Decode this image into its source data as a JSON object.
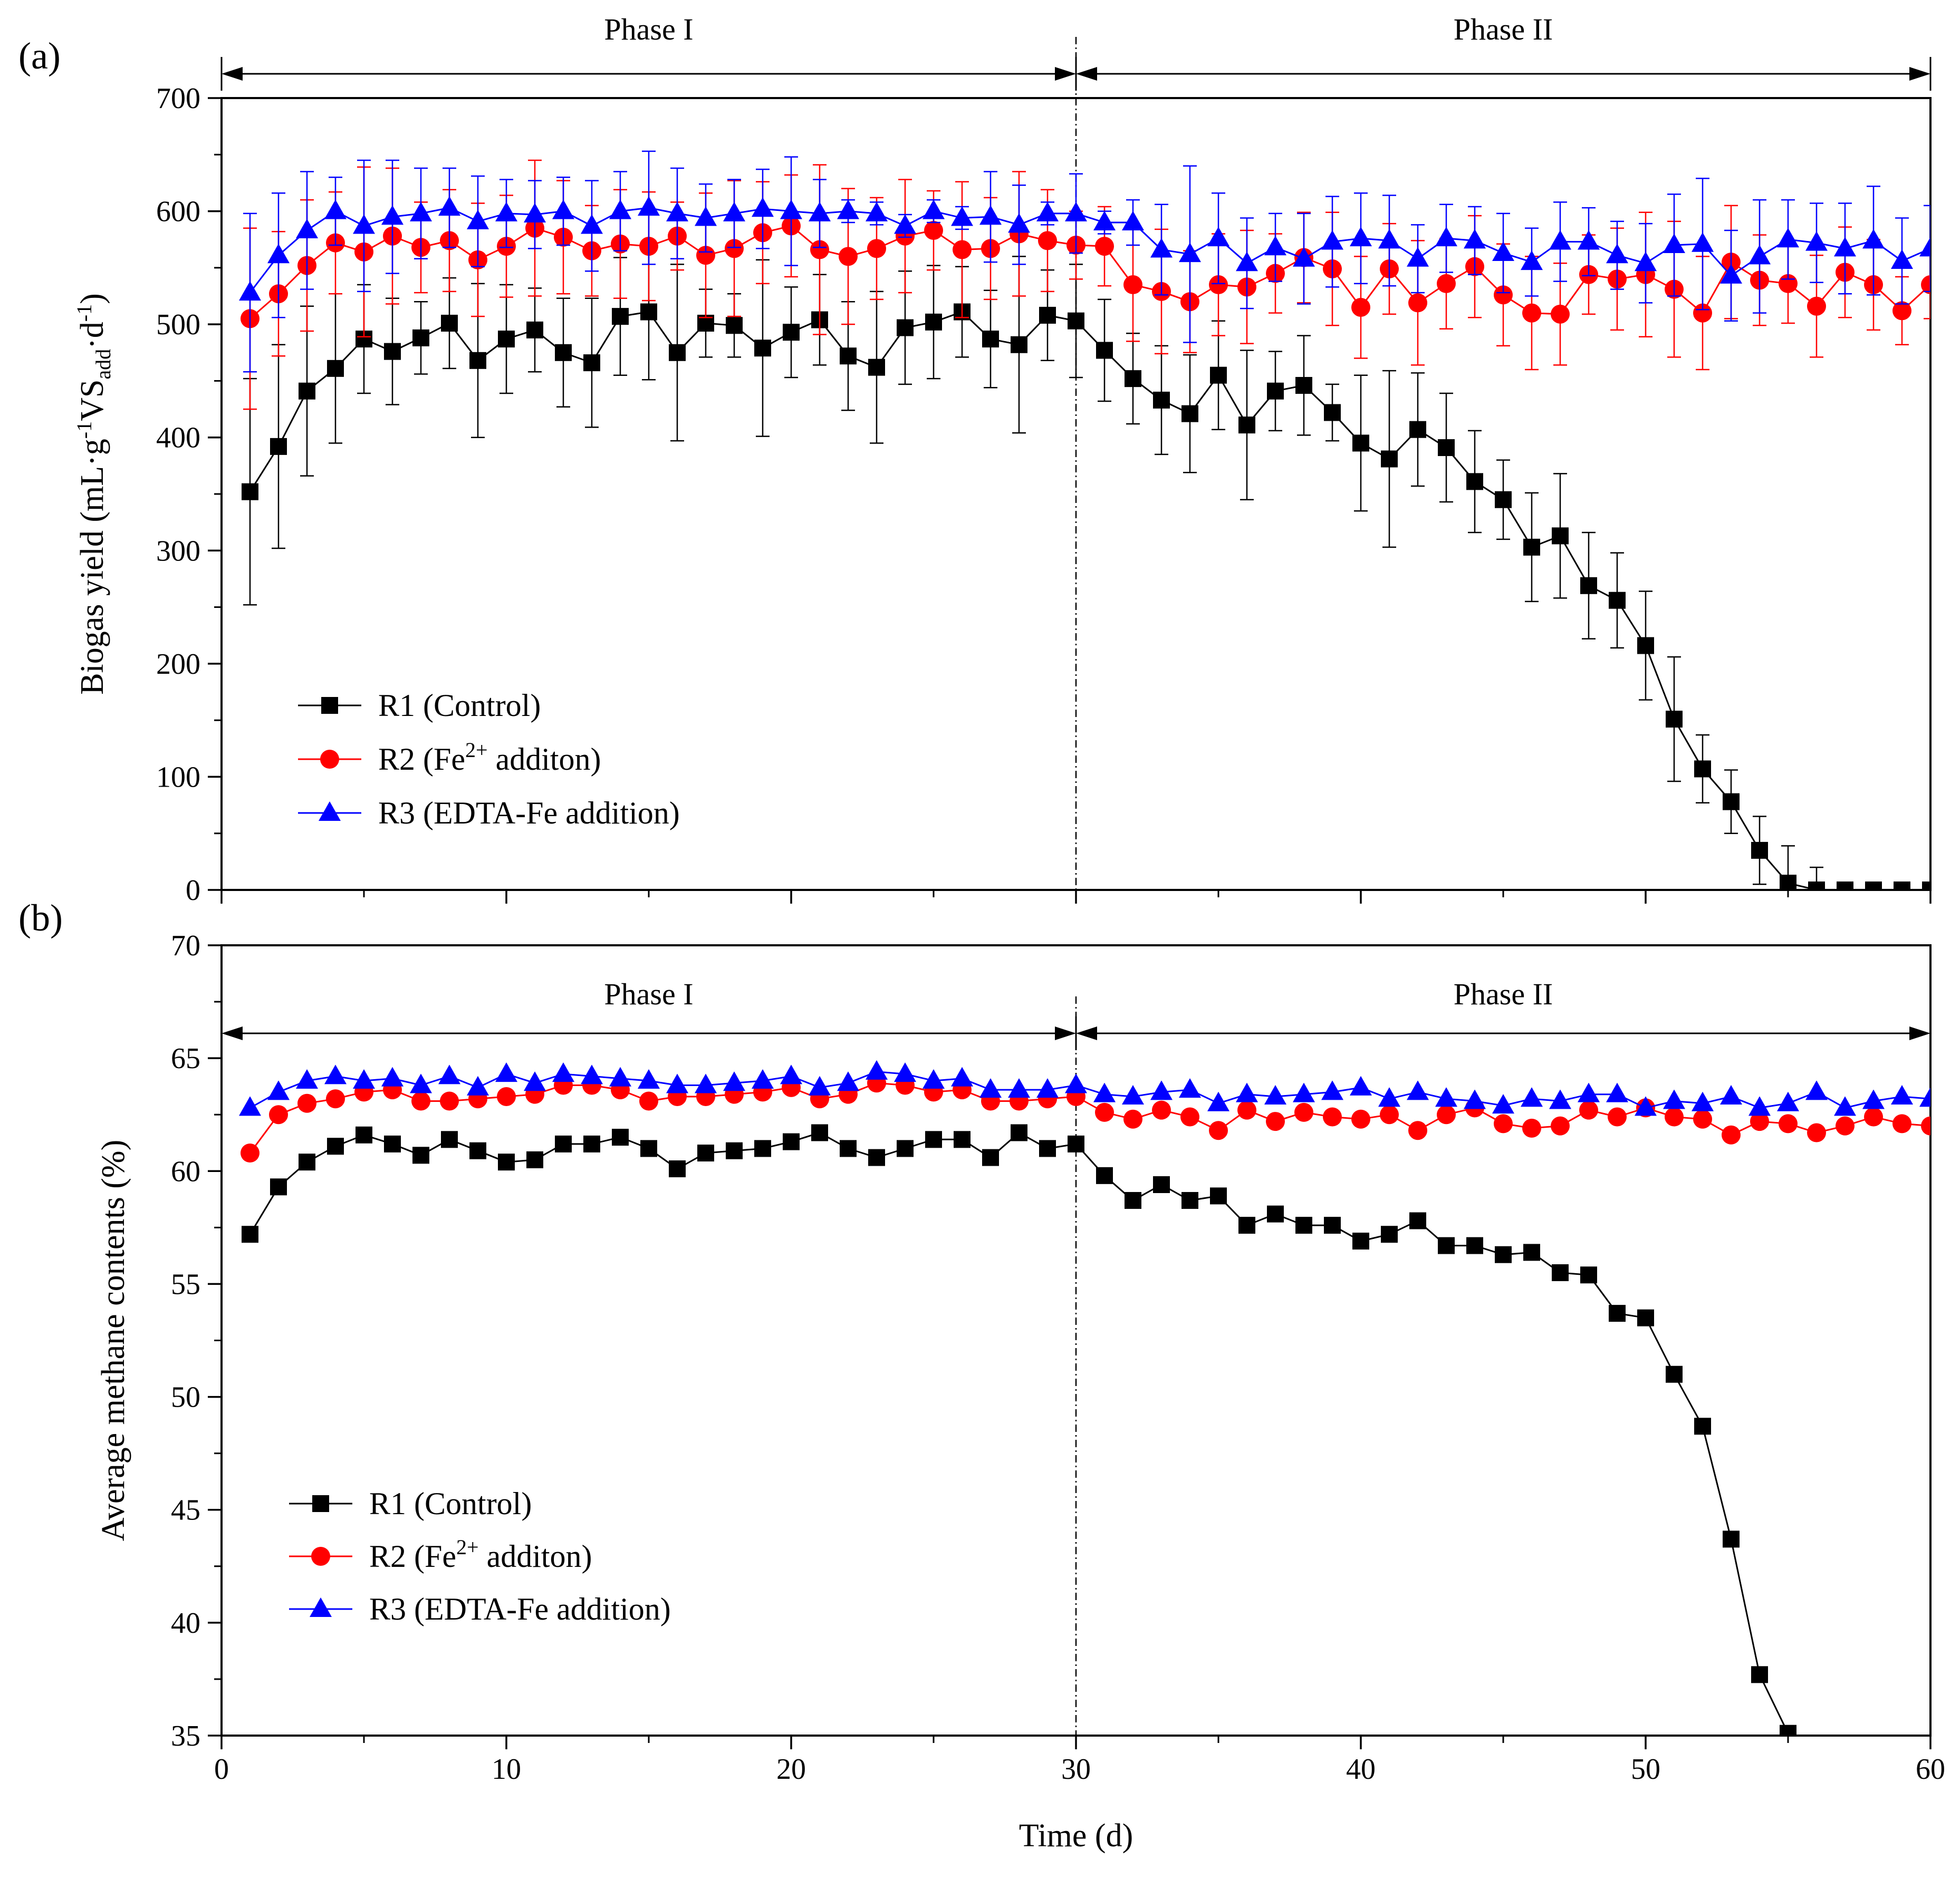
{
  "chart_data": [
    {
      "type": "line",
      "panel_label": "(a)",
      "xlabel": "",
      "ylabel": {
        "main": "Biogas yield (mL·g",
        "sup1": "-1",
        "mid": "VS",
        "sub": "add",
        "mid2": "·d",
        "sup2": "-1",
        "end": ")"
      },
      "xlim": [
        0,
        60
      ],
      "ylim": [
        0,
        700
      ],
      "xticks": [
        "0",
        "10",
        "20",
        "30",
        "40",
        "50",
        "60"
      ],
      "yticks": [
        "0",
        "100",
        "200",
        "300",
        "400",
        "500",
        "600",
        "700"
      ],
      "phases": [
        {
          "label": "Phase I",
          "from": 0,
          "to": 30
        },
        {
          "label": "Phase II",
          "from": 30,
          "to": 60
        }
      ],
      "divider_x": 30,
      "legend": {
        "position": "bottom-left",
        "entries": [
          {
            "series": "R1",
            "text": "R1 (Control)"
          },
          {
            "series": "R2",
            "text": "R2 (Fe",
            "sup": "2+",
            "after": " additon)"
          },
          {
            "series": "R3",
            "text": "R3 (EDTA-Fe addition)"
          }
        ]
      },
      "x": [
        1,
        2,
        3,
        4,
        5,
        6,
        7,
        8,
        9,
        10,
        11,
        12,
        13,
        14,
        15,
        16,
        17,
        18,
        19,
        20,
        21,
        22,
        23,
        24,
        25,
        26,
        27,
        28,
        29,
        30,
        31,
        32,
        33,
        34,
        35,
        36,
        37,
        38,
        39,
        40,
        41,
        42,
        43,
        44,
        45,
        46,
        47,
        48,
        49,
        50,
        51,
        52,
        53,
        54,
        55,
        56,
        57,
        58,
        59,
        60
      ],
      "series": [
        {
          "name": "R1 (Control)",
          "key": "R1",
          "color": "#000000",
          "marker": "square",
          "values": [
            352,
            392,
            441,
            461,
            487,
            476,
            488,
            501,
            468,
            487,
            495,
            475,
            466,
            507,
            511,
            475,
            501,
            499,
            479,
            493,
            504,
            472,
            462,
            497,
            502,
            511,
            487,
            482,
            508,
            503,
            477,
            452,
            433,
            421,
            455,
            411,
            441,
            446,
            422,
            395,
            381,
            407,
            391,
            361,
            345,
            303,
            313,
            269,
            256,
            216,
            151,
            107,
            78,
            35,
            6,
            0,
            0,
            0,
            0,
            0
          ],
          "errors": [
            100,
            90,
            75,
            66,
            48,
            47,
            32,
            40,
            68,
            48,
            37,
            48,
            57,
            52,
            60,
            78,
            30,
            28,
            78,
            40,
            40,
            48,
            67,
            50,
            50,
            40,
            43,
            78,
            40,
            50,
            45,
            40,
            48,
            52,
            48,
            66,
            35,
            44,
            25,
            60,
            78,
            50,
            48,
            45,
            35,
            48,
            55,
            47,
            42,
            48,
            55,
            30,
            28,
            30,
            33,
            20,
            0,
            0,
            0,
            0
          ]
        },
        {
          "name": "R2 (Fe2+ additon)",
          "key": "R2",
          "color": "#ff0000",
          "marker": "circle",
          "values": [
            505,
            527,
            552,
            572,
            564,
            578,
            568,
            574,
            557,
            569,
            585,
            577,
            565,
            571,
            569,
            578,
            561,
            567,
            581,
            587,
            566,
            560,
            567,
            578,
            583,
            566,
            567,
            580,
            574,
            570,
            569,
            535,
            529,
            520,
            535,
            533,
            545,
            559,
            549,
            515,
            549,
            519,
            536,
            551,
            526,
            510,
            509,
            544,
            540,
            544,
            531,
            510,
            555,
            539,
            536,
            516,
            546,
            535,
            512,
            535
          ],
          "errors": [
            80,
            55,
            58,
            45,
            75,
            60,
            40,
            45,
            50,
            45,
            60,
            50,
            40,
            48,
            48,
            30,
            55,
            60,
            45,
            45,
            75,
            60,
            45,
            50,
            35,
            60,
            45,
            55,
            45,
            30,
            35,
            50,
            55,
            45,
            45,
            50,
            35,
            40,
            50,
            45,
            40,
            55,
            40,
            45,
            45,
            50,
            45,
            35,
            45,
            55,
            60,
            50,
            50,
            40,
            35,
            45,
            40,
            40,
            30,
            30
          ]
        },
        {
          "name": "R3 (EDTA-Fe addition)",
          "key": "R3",
          "color": "#0000ff",
          "marker": "triangle",
          "values": [
            528,
            561,
            583,
            600,
            587,
            595,
            598,
            603,
            591,
            598,
            597,
            600,
            587,
            600,
            603,
            598,
            594,
            598,
            602,
            600,
            598,
            600,
            598,
            587,
            600,
            594,
            595,
            588,
            598,
            598,
            590,
            590,
            566,
            562,
            576,
            554,
            568,
            558,
            573,
            576,
            574,
            558,
            576,
            574,
            563,
            555,
            573,
            573,
            561,
            554,
            570,
            571,
            543,
            560,
            575,
            572,
            567,
            574,
            556,
            567
          ],
          "errors": [
            70,
            55,
            52,
            30,
            58,
            50,
            40,
            35,
            40,
            30,
            30,
            30,
            40,
            35,
            50,
            40,
            30,
            30,
            35,
            48,
            30,
            10,
            10,
            10,
            10,
            10,
            40,
            35,
            10,
            35,
            10,
            20,
            40,
            78,
            40,
            40,
            30,
            40,
            40,
            40,
            40,
            30,
            30,
            30,
            35,
            30,
            35,
            30,
            30,
            35,
            45,
            58,
            40,
            50,
            35,
            35,
            40,
            48,
            38,
            38
          ]
        }
      ]
    },
    {
      "type": "line",
      "panel_label": "(b)",
      "xlabel": "Time (d)",
      "ylabel": "Average methane contents (%)",
      "xlim": [
        0,
        60
      ],
      "ylim": [
        35,
        70
      ],
      "xticks": [
        "0",
        "10",
        "20",
        "30",
        "40",
        "50",
        "60"
      ],
      "yticks": [
        "35",
        "40",
        "45",
        "50",
        "55",
        "60",
        "65",
        "70"
      ],
      "phases": [
        {
          "label": "Phase I",
          "from": 0,
          "to": 30
        },
        {
          "label": "Phase II",
          "from": 30,
          "to": 60
        }
      ],
      "divider_x": 30,
      "legend": {
        "position": "bottom-left",
        "entries": [
          {
            "series": "R1",
            "text": "R1 (Control)"
          },
          {
            "series": "R2",
            "text": "R2 (Fe",
            "sup": "2+",
            "after": " additon)"
          },
          {
            "series": "R3",
            "text": "R3 (EDTA-Fe addition)"
          }
        ]
      },
      "x": [
        1,
        2,
        3,
        4,
        5,
        6,
        7,
        8,
        9,
        10,
        11,
        12,
        13,
        14,
        15,
        16,
        17,
        18,
        19,
        20,
        21,
        22,
        23,
        24,
        25,
        26,
        27,
        28,
        29,
        30,
        31,
        32,
        33,
        34,
        35,
        36,
        37,
        38,
        39,
        40,
        41,
        42,
        43,
        44,
        45,
        46,
        47,
        48,
        49,
        50,
        51,
        52,
        53,
        54,
        55
      ],
      "series": [
        {
          "name": "R1 (Control)",
          "key": "R1",
          "color": "#000000",
          "marker": "square",
          "values": [
            57.2,
            59.3,
            60.4,
            61.1,
            61.6,
            61.2,
            60.7,
            61.4,
            60.9,
            60.4,
            60.5,
            61.2,
            61.2,
            61.5,
            61.0,
            60.1,
            60.8,
            60.9,
            61.0,
            61.3,
            61.7,
            61.0,
            60.6,
            61.0,
            61.4,
            61.4,
            60.6,
            61.7,
            61.0,
            61.2,
            59.8,
            58.7,
            59.4,
            58.7,
            58.9,
            57.6,
            58.1,
            57.6,
            57.6,
            56.9,
            57.2,
            57.8,
            56.7,
            56.7,
            56.3,
            56.4,
            55.5,
            55.4,
            53.7,
            53.5,
            51.0,
            48.7,
            43.7,
            37.7,
            35.1
          ]
        },
        {
          "name": "R2 (Fe2+ additon)",
          "key": "R2",
          "color": "#ff0000",
          "marker": "circle",
          "x": [
            1,
            2,
            3,
            4,
            5,
            6,
            7,
            8,
            9,
            10,
            11,
            12,
            13,
            14,
            15,
            16,
            17,
            18,
            19,
            20,
            21,
            22,
            23,
            24,
            25,
            26,
            27,
            28,
            29,
            30,
            31,
            32,
            33,
            34,
            35,
            36,
            37,
            38,
            39,
            40,
            41,
            42,
            43,
            44,
            45,
            46,
            47,
            48,
            49,
            50,
            51,
            52,
            53,
            54,
            55,
            56,
            57,
            58,
            59,
            60
          ],
          "values": [
            60.8,
            62.5,
            63.0,
            63.2,
            63.5,
            63.6,
            63.1,
            63.1,
            63.2,
            63.3,
            63.4,
            63.8,
            63.8,
            63.6,
            63.1,
            63.3,
            63.3,
            63.4,
            63.5,
            63.7,
            63.2,
            63.4,
            63.9,
            63.8,
            63.5,
            63.6,
            63.1,
            63.1,
            63.2,
            63.3,
            62.6,
            62.3,
            62.7,
            62.4,
            61.8,
            62.7,
            62.2,
            62.6,
            62.4,
            62.3,
            62.5,
            61.8,
            62.5,
            62.8,
            62.1,
            61.9,
            62.0,
            62.7,
            62.4,
            62.8,
            62.4,
            62.3,
            61.6,
            62.2,
            62.1,
            61.7,
            62.0,
            62.4,
            62.1,
            62.0
          ]
        },
        {
          "name": "R3 (EDTA-Fe addition)",
          "key": "R3",
          "color": "#0000ff",
          "marker": "triangle",
          "x": [
            1,
            2,
            3,
            4,
            5,
            6,
            7,
            8,
            9,
            10,
            11,
            12,
            13,
            14,
            15,
            16,
            17,
            18,
            19,
            20,
            21,
            22,
            23,
            24,
            25,
            26,
            27,
            28,
            29,
            30,
            31,
            32,
            33,
            34,
            35,
            36,
            37,
            38,
            39,
            40,
            41,
            42,
            43,
            44,
            45,
            46,
            47,
            48,
            49,
            50,
            51,
            52,
            53,
            54,
            55,
            56,
            57,
            58,
            59,
            60
          ],
          "values": [
            62.8,
            63.5,
            64.0,
            64.2,
            64.0,
            64.1,
            63.8,
            64.2,
            63.7,
            64.3,
            63.9,
            64.3,
            64.2,
            64.1,
            64.0,
            63.8,
            63.8,
            63.9,
            64.0,
            64.2,
            63.7,
            63.9,
            64.4,
            64.3,
            64.0,
            64.1,
            63.6,
            63.6,
            63.6,
            63.8,
            63.4,
            63.3,
            63.5,
            63.6,
            63.0,
            63.4,
            63.3,
            63.4,
            63.5,
            63.7,
            63.2,
            63.5,
            63.2,
            63.1,
            62.9,
            63.2,
            63.1,
            63.4,
            63.4,
            62.8,
            63.1,
            63.0,
            63.3,
            62.8,
            63.0,
            63.5,
            62.8,
            63.1,
            63.3,
            63.2
          ]
        }
      ]
    }
  ]
}
